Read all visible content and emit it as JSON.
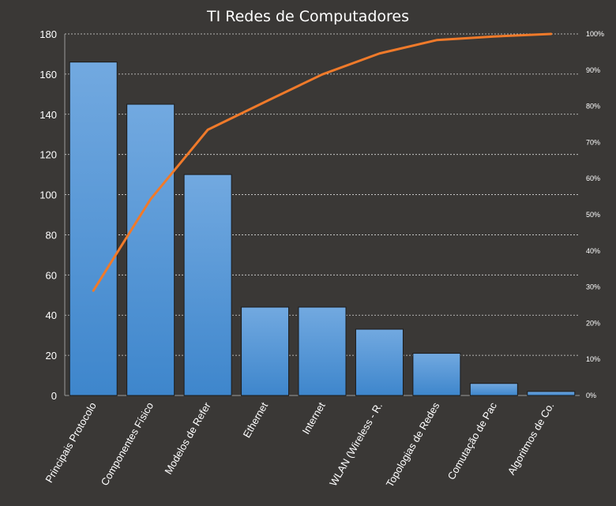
{
  "chart_data": {
    "type": "bar",
    "title": "TI Redes de Computadores",
    "xlabel": "",
    "ylabel": "",
    "categories": [
      "Principais Protocolo",
      "Componentes Físico",
      "Modelos de Refer",
      "Ethernet",
      "Internet",
      "WLAN (Wireless - R.",
      "Topologias de Redes",
      "Comutação de Pac",
      "Algoritmos de Co."
    ],
    "series": [
      {
        "type": "bar",
        "values": [
          166,
          145,
          110,
          44,
          44,
          33,
          21,
          6,
          2
        ]
      },
      {
        "type": "line",
        "axis": "secondary",
        "values": [
          29.0,
          54.3,
          73.5,
          81.2,
          88.8,
          94.6,
          98.3,
          99.3,
          100
        ]
      }
    ],
    "ylim": [
      0,
      180
    ],
    "yticks": [
      0,
      20,
      40,
      60,
      80,
      100,
      120,
      140,
      160,
      180
    ],
    "y2lim": [
      0,
      100
    ],
    "y2ticks": [
      "0%",
      "10%",
      "20%",
      "30%",
      "40%",
      "50%",
      "60%",
      "70%",
      "80%",
      "90%",
      "100%"
    ],
    "grid": true,
    "legend": "none",
    "colors": {
      "background": "#3a3836",
      "bar_top": "#72a9e0",
      "bar_bottom": "#3e86cc",
      "bar_edge": "#1c1c1c",
      "line": "#f07a2a",
      "text": "#ffffff",
      "grid": "#d8d8d8"
    }
  }
}
